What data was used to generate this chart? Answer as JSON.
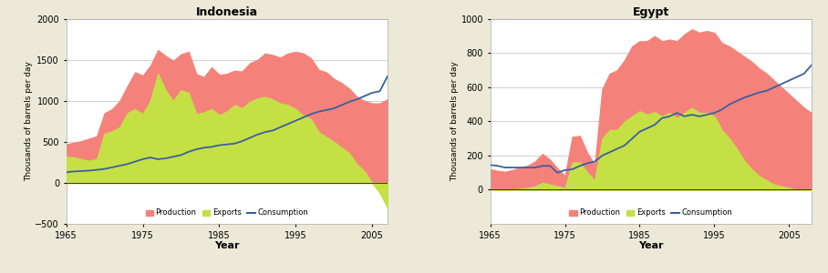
{
  "indonesia": {
    "title": "Indonesia",
    "years": [
      1965,
      1966,
      1967,
      1968,
      1969,
      1970,
      1971,
      1972,
      1973,
      1974,
      1975,
      1976,
      1977,
      1978,
      1979,
      1980,
      1981,
      1982,
      1983,
      1984,
      1985,
      1986,
      1987,
      1988,
      1989,
      1990,
      1991,
      1992,
      1993,
      1994,
      1995,
      1996,
      1997,
      1998,
      1999,
      2000,
      2001,
      2002,
      2003,
      2004,
      2005,
      2006,
      2007
    ],
    "production": [
      470,
      490,
      510,
      540,
      570,
      850,
      900,
      1000,
      1180,
      1350,
      1310,
      1430,
      1620,
      1550,
      1490,
      1570,
      1600,
      1330,
      1290,
      1410,
      1320,
      1330,
      1370,
      1360,
      1460,
      1500,
      1580,
      1560,
      1530,
      1580,
      1600,
      1580,
      1520,
      1380,
      1350,
      1270,
      1220,
      1150,
      1050,
      1000,
      970,
      970,
      1020
    ],
    "exports": [
      320,
      310,
      290,
      270,
      290,
      600,
      630,
      680,
      850,
      900,
      840,
      1000,
      1330,
      1130,
      1000,
      1130,
      1100,
      840,
      860,
      900,
      830,
      870,
      950,
      910,
      990,
      1030,
      1050,
      1020,
      970,
      950,
      900,
      820,
      780,
      620,
      560,
      500,
      430,
      360,
      230,
      140,
      0,
      -120,
      -300
    ],
    "consumption": [
      130,
      140,
      145,
      150,
      160,
      170,
      190,
      210,
      230,
      260,
      290,
      310,
      290,
      300,
      320,
      340,
      380,
      410,
      430,
      440,
      460,
      470,
      480,
      510,
      550,
      590,
      620,
      640,
      680,
      720,
      760,
      800,
      840,
      870,
      890,
      910,
      950,
      990,
      1020,
      1060,
      1100,
      1120,
      1300
    ],
    "ylim": [
      -500,
      2000
    ],
    "yticks": [
      -500,
      0,
      500,
      1000,
      1500,
      2000
    ],
    "ylabel": "Thousands of barrels per day",
    "xlabel": "Year",
    "xticks": [
      1965,
      1975,
      1985,
      1995,
      2005
    ],
    "xlim": [
      1965,
      2007
    ]
  },
  "egypt": {
    "title": "Egypt",
    "years": [
      1965,
      1966,
      1967,
      1968,
      1969,
      1970,
      1971,
      1972,
      1973,
      1974,
      1975,
      1976,
      1977,
      1978,
      1979,
      1980,
      1981,
      1982,
      1983,
      1984,
      1985,
      1986,
      1987,
      1988,
      1989,
      1990,
      1991,
      1992,
      1993,
      1994,
      1995,
      1996,
      1997,
      1998,
      1999,
      2000,
      2001,
      2002,
      2003,
      2004,
      2005,
      2006,
      2007,
      2008
    ],
    "production": [
      120,
      110,
      105,
      115,
      130,
      140,
      165,
      210,
      175,
      125,
      80,
      310,
      315,
      215,
      145,
      590,
      680,
      700,
      760,
      840,
      870,
      870,
      900,
      870,
      880,
      870,
      910,
      940,
      920,
      930,
      920,
      860,
      840,
      810,
      780,
      750,
      710,
      680,
      640,
      600,
      560,
      520,
      480,
      450
    ],
    "exports": [
      0,
      0,
      0,
      0,
      5,
      10,
      20,
      40,
      30,
      20,
      10,
      160,
      160,
      100,
      55,
      300,
      350,
      350,
      400,
      430,
      460,
      440,
      455,
      430,
      450,
      420,
      450,
      480,
      450,
      450,
      430,
      350,
      300,
      240,
      170,
      120,
      80,
      55,
      30,
      20,
      10,
      0,
      0,
      0
    ],
    "consumption": [
      145,
      140,
      130,
      130,
      130,
      130,
      130,
      140,
      140,
      100,
      115,
      120,
      140,
      155,
      165,
      200,
      220,
      240,
      260,
      300,
      340,
      360,
      380,
      420,
      430,
      450,
      430,
      440,
      430,
      440,
      450,
      470,
      500,
      520,
      540,
      555,
      570,
      580,
      600,
      620,
      640,
      660,
      680,
      730
    ],
    "ylim": [
      -200,
      1000
    ],
    "yticks": [
      0,
      200,
      400,
      600,
      800,
      1000
    ],
    "ylabel": "Thousands of barrels per day",
    "xlabel": "Year",
    "xticks": [
      1965,
      1975,
      1985,
      1995,
      2005
    ],
    "xlim": [
      1965,
      2008
    ]
  },
  "production_color": "#f4827a",
  "exports_color": "#c5e044",
  "consumption_color": "#3a5fa0",
  "background_color": "#ece9d8",
  "plot_bg_color": "#ffffff",
  "grid_color": "#c8c8c8"
}
